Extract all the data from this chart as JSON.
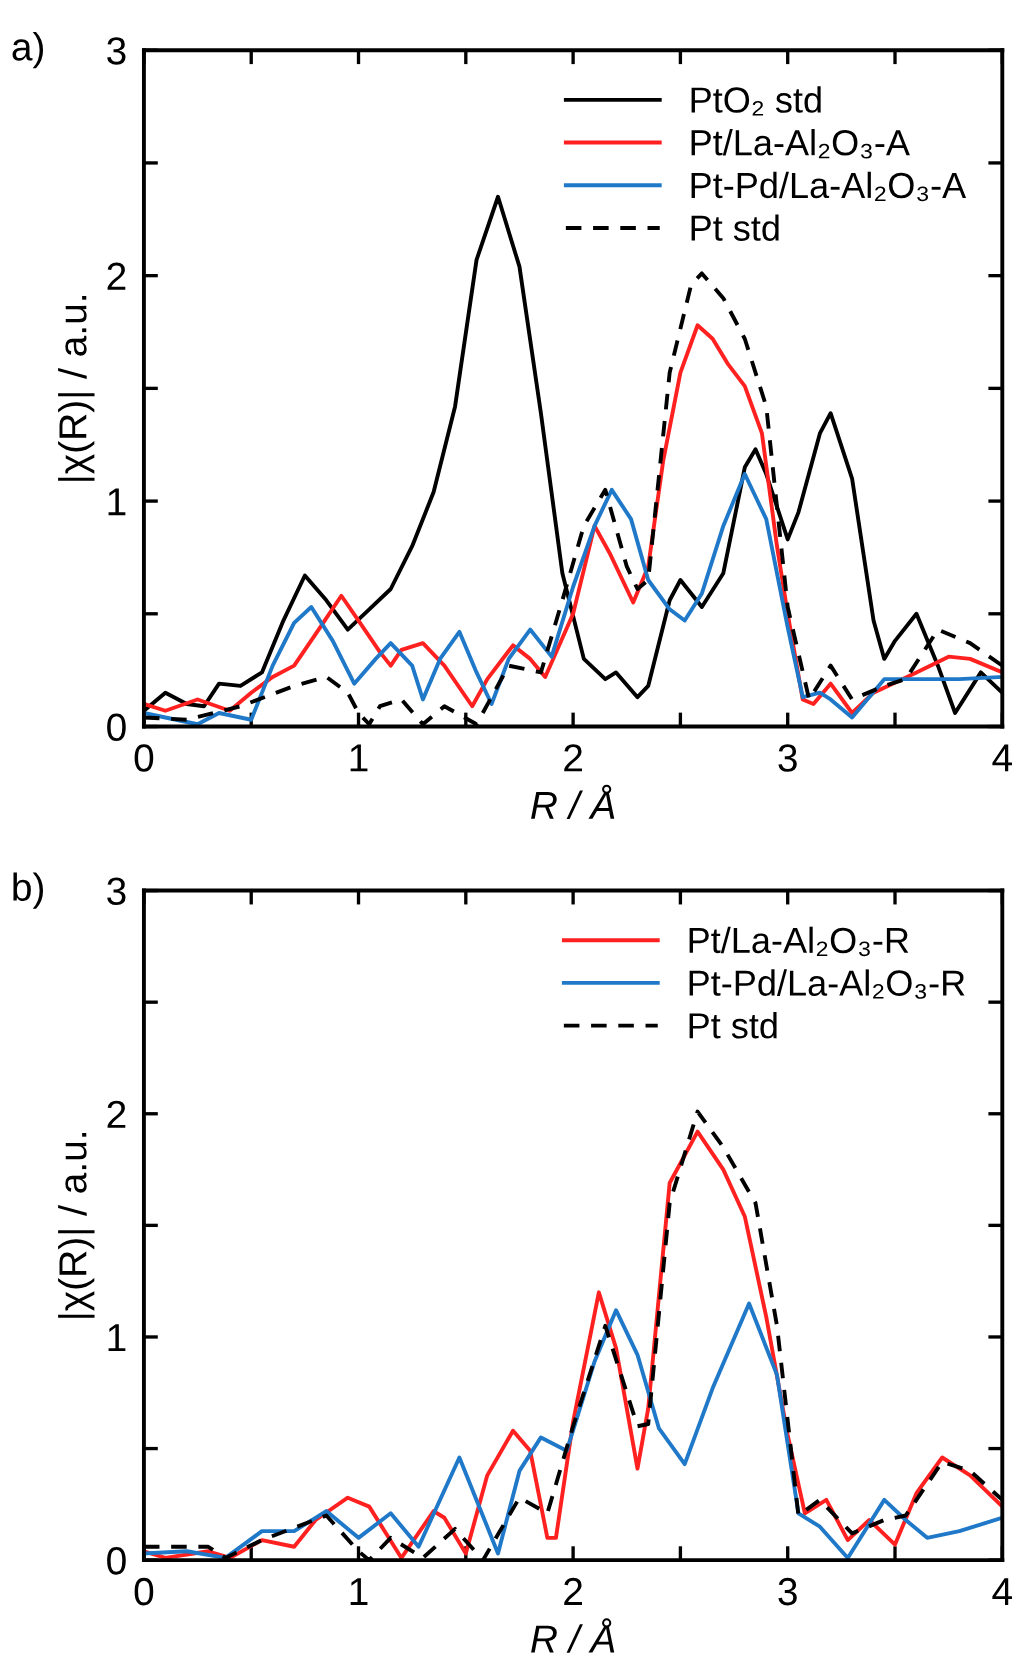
{
  "chart_data": [
    {
      "type": "line",
      "title": "a)",
      "xlabel": "R / Å",
      "ylabel": "|χ(R)| / a.u.",
      "xlim": [
        0,
        4
      ],
      "ylim": [
        0,
        3
      ],
      "xticks": [
        0,
        {
          "value": 0.5,
          "label": null
        },
        1,
        {
          "value": 1.5,
          "label": null
        },
        2,
        {
          "value": 2.5,
          "label": null
        },
        3,
        {
          "value": 3.5,
          "label": null
        },
        4
      ],
      "yticks": [
        0,
        {
          "value": 0.5,
          "label": null
        },
        1,
        {
          "value": 1.5,
          "label": null
        },
        2,
        {
          "value": 2.5,
          "label": null
        },
        3
      ],
      "grid": false,
      "legend": "top right",
      "marker": "none",
      "series": [
        {
          "name": "PtO₂ std",
          "color": "#000000",
          "line_style": "solid",
          "x": [
            0,
            0.1,
            0.2,
            0.28,
            0.35,
            0.45,
            0.55,
            0.65,
            0.75,
            0.85,
            0.95,
            1.05,
            1.15,
            1.25,
            1.35,
            1.45,
            1.55,
            1.65,
            1.75,
            1.85,
            1.95,
            2.05,
            2.15,
            2.2,
            2.3,
            2.35,
            2.45,
            2.5,
            2.6,
            2.7,
            2.8,
            2.85,
            2.9,
            3.0,
            3.05,
            3.15,
            3.2,
            3.3,
            3.4,
            3.45,
            3.5,
            3.6,
            3.7,
            3.78,
            3.9,
            4.0
          ],
          "values": [
            0.07,
            0.15,
            0.1,
            0.09,
            0.19,
            0.18,
            0.24,
            0.47,
            0.67,
            0.56,
            0.43,
            0.52,
            0.61,
            0.8,
            1.04,
            1.42,
            2.07,
            2.35,
            2.04,
            1.39,
            0.68,
            0.3,
            0.21,
            0.24,
            0.13,
            0.18,
            0.56,
            0.65,
            0.53,
            0.68,
            1.15,
            1.23,
            1.12,
            0.83,
            0.95,
            1.3,
            1.39,
            1.1,
            0.47,
            0.3,
            0.38,
            0.5,
            0.27,
            0.06,
            0.24,
            0.15
          ]
        },
        {
          "name": "Pt/La-Al₂O₃-A",
          "color": "#ff2020",
          "line_style": "solid",
          "x": [
            0,
            0.1,
            0.25,
            0.4,
            0.5,
            0.6,
            0.7,
            0.8,
            0.92,
            1.0,
            1.1,
            1.15,
            1.2,
            1.3,
            1.4,
            1.53,
            1.6,
            1.72,
            1.8,
            1.87,
            2.0,
            2.1,
            2.17,
            2.28,
            2.35,
            2.42,
            2.5,
            2.58,
            2.65,
            2.72,
            2.8,
            2.88,
            2.95,
            3.0,
            3.07,
            3.12,
            3.2,
            3.3,
            3.4,
            3.6,
            3.75,
            3.85,
            4.0
          ],
          "values": [
            0.1,
            0.07,
            0.12,
            0.07,
            0.15,
            0.22,
            0.27,
            0.41,
            0.58,
            0.47,
            0.33,
            0.27,
            0.34,
            0.37,
            0.27,
            0.09,
            0.21,
            0.36,
            0.3,
            0.22,
            0.5,
            0.89,
            0.77,
            0.55,
            0.71,
            1.18,
            1.57,
            1.78,
            1.72,
            1.61,
            1.51,
            1.3,
            0.8,
            0.5,
            0.12,
            0.1,
            0.19,
            0.06,
            0.15,
            0.24,
            0.31,
            0.3,
            0.24
          ]
        },
        {
          "name": "Pt-Pd/La-Al₂O₃-A",
          "color": "#1f78c8",
          "line_style": "solid",
          "x": [
            0,
            0.1,
            0.25,
            0.35,
            0.5,
            0.6,
            0.7,
            0.78,
            0.88,
            0.98,
            1.08,
            1.15,
            1.25,
            1.3,
            1.38,
            1.47,
            1.55,
            1.62,
            1.7,
            1.8,
            1.9,
            2.0,
            2.1,
            2.18,
            2.27,
            2.35,
            2.45,
            2.52,
            2.6,
            2.7,
            2.8,
            2.9,
            3.0,
            3.07,
            3.15,
            3.2,
            3.3,
            3.45,
            3.6,
            3.8,
            4.0
          ],
          "values": [
            0.06,
            0.04,
            0.01,
            0.06,
            0.03,
            0.27,
            0.46,
            0.53,
            0.38,
            0.19,
            0.3,
            0.37,
            0.27,
            0.12,
            0.3,
            0.42,
            0.24,
            0.1,
            0.3,
            0.43,
            0.31,
            0.62,
            0.89,
            1.05,
            0.92,
            0.65,
            0.52,
            0.47,
            0.59,
            0.89,
            1.12,
            0.92,
            0.44,
            0.13,
            0.15,
            0.12,
            0.04,
            0.21,
            0.21,
            0.21,
            0.22
          ]
        },
        {
          "name": "Pt std",
          "color": "#000000",
          "line_style": "dashed",
          "x": [
            0,
            0.2,
            0.45,
            0.7,
            0.85,
            0.95,
            1.0,
            1.05,
            1.1,
            1.2,
            1.3,
            1.4,
            1.55,
            1.7,
            1.85,
            1.95,
            2.05,
            2.15,
            2.25,
            2.3,
            2.35,
            2.45,
            2.55,
            2.6,
            2.7,
            2.8,
            2.9,
            3.0,
            3.1,
            3.2,
            3.3,
            3.45,
            3.55,
            3.7,
            3.85,
            4.0
          ],
          "values": [
            0.04,
            0.03,
            0.09,
            0.18,
            0.22,
            0.15,
            0.06,
            0.01,
            0.09,
            0.12,
            0.01,
            0.09,
            0.01,
            0.27,
            0.24,
            0.56,
            0.89,
            1.05,
            0.71,
            0.61,
            0.65,
            1.57,
            1.96,
            2.01,
            1.9,
            1.72,
            1.42,
            0.53,
            0.12,
            0.27,
            0.12,
            0.18,
            0.21,
            0.43,
            0.37,
            0.27
          ]
        }
      ]
    },
    {
      "type": "line",
      "title": "b)",
      "xlabel": "R / Å",
      "ylabel": "|χ(R)| / a.u.",
      "xlim": [
        0,
        4
      ],
      "ylim": [
        0,
        3
      ],
      "xticks": [
        0,
        {
          "value": 0.5,
          "label": null
        },
        1,
        {
          "value": 1.5,
          "label": null
        },
        2,
        {
          "value": 2.5,
          "label": null
        },
        3,
        {
          "value": 3.5,
          "label": null
        },
        4
      ],
      "yticks": [
        0,
        {
          "value": 0.5,
          "label": null
        },
        1,
        {
          "value": 1.5,
          "label": null
        },
        2,
        {
          "value": 2.5,
          "label": null
        },
        3
      ],
      "grid": false,
      "legend": "top right",
      "marker": "none",
      "series": [
        {
          "name": "Pt/La-Al₂O₃-R",
          "color": "#ff2020",
          "line_style": "solid",
          "x": [
            0,
            0.1,
            0.3,
            0.4,
            0.55,
            0.7,
            0.8,
            0.95,
            1.05,
            1.2,
            1.35,
            1.4,
            1.5,
            1.6,
            1.72,
            1.8,
            1.88,
            1.92,
            2.0,
            2.12,
            2.2,
            2.3,
            2.35,
            2.45,
            2.58,
            2.7,
            2.8,
            2.9,
            3.0,
            3.08,
            3.18,
            3.28,
            3.38,
            3.5,
            3.6,
            3.72,
            3.85,
            4.0
          ],
          "values": [
            0.04,
            0.01,
            0.04,
            0.01,
            0.09,
            0.06,
            0.18,
            0.28,
            0.24,
            0.01,
            0.22,
            0.19,
            0.03,
            0.38,
            0.58,
            0.49,
            0.1,
            0.1,
            0.62,
            1.2,
            0.95,
            0.41,
            0.68,
            1.69,
            1.92,
            1.75,
            1.54,
            1.09,
            0.56,
            0.21,
            0.27,
            0.09,
            0.18,
            0.07,
            0.3,
            0.46,
            0.38,
            0.24
          ]
        },
        {
          "name": "Pt-Pd/La-Al₂O₃-R",
          "color": "#1f78c8",
          "line_style": "solid",
          "x": [
            0,
            0.2,
            0.38,
            0.55,
            0.7,
            0.85,
            1.0,
            1.15,
            1.28,
            1.47,
            1.65,
            1.75,
            1.85,
            1.97,
            2.1,
            2.2,
            2.3,
            2.4,
            2.52,
            2.65,
            2.82,
            2.95,
            3.05,
            3.15,
            3.28,
            3.45,
            3.55,
            3.65,
            3.8,
            4.0
          ],
          "values": [
            0.03,
            0.04,
            0.01,
            0.13,
            0.13,
            0.22,
            0.1,
            0.21,
            0.06,
            0.46,
            0.03,
            0.4,
            0.55,
            0.49,
            0.89,
            1.12,
            0.92,
            0.59,
            0.43,
            0.77,
            1.15,
            0.83,
            0.21,
            0.15,
            0.01,
            0.27,
            0.18,
            0.1,
            0.13,
            0.19
          ]
        },
        {
          "name": "Pt std",
          "color": "#000000",
          "line_style": "dashed",
          "x": [
            0,
            0.3,
            0.38,
            0.55,
            0.85,
            1.0,
            1.05,
            1.15,
            1.3,
            1.45,
            1.58,
            1.75,
            1.88,
            2.0,
            2.15,
            2.3,
            2.35,
            2.45,
            2.58,
            2.7,
            2.85,
            2.95,
            3.05,
            3.15,
            3.3,
            3.45,
            3.55,
            3.72,
            3.85,
            4.0
          ],
          "values": [
            0.06,
            0.06,
            0.01,
            0.09,
            0.2,
            0.04,
            0.0,
            0.1,
            0.01,
            0.14,
            0.0,
            0.28,
            0.21,
            0.6,
            1.05,
            0.6,
            0.61,
            1.6,
            2.01,
            1.85,
            1.6,
            1.05,
            0.2,
            0.27,
            0.12,
            0.18,
            0.2,
            0.44,
            0.4,
            0.27
          ]
        }
      ]
    }
  ]
}
